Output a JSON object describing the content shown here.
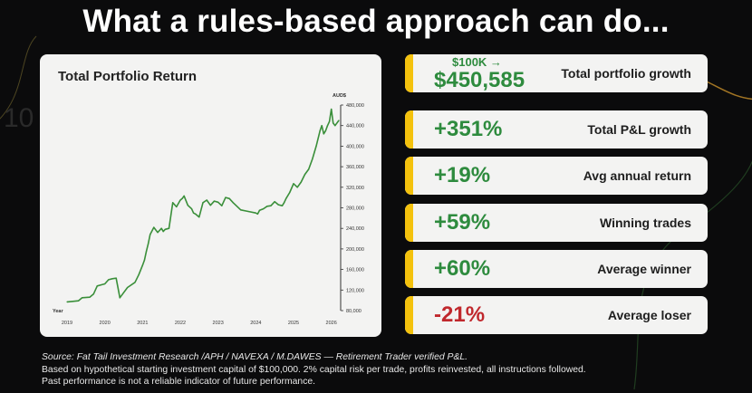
{
  "headline": "What a rules-based approach can do...",
  "colors": {
    "accent_yellow": "#f4c20d",
    "positive_green": "#2e8b3e",
    "negative_red": "#c0282d",
    "line_green": "#3a8f3a"
  },
  "chart_data": {
    "type": "line",
    "title": "Total Portfolio Return",
    "ylabel": "AUD$",
    "xlabel": "Year",
    "ylim": [
      80000,
      480000
    ],
    "yticks": [
      80000,
      120000,
      160000,
      200000,
      240000,
      280000,
      320000,
      360000,
      400000,
      440000,
      480000
    ],
    "ytick_labels": [
      "80,000",
      "120,000",
      "160,000",
      "200,000",
      "240,000",
      "280,000",
      "320,000",
      "360,000",
      "400,000",
      "440,000",
      "480,000"
    ],
    "xlim": [
      2019,
      2026.2
    ],
    "xticks": [
      2019,
      2020,
      2021,
      2022,
      2023,
      2024,
      2025,
      2026
    ],
    "xtick_labels": [
      "2019",
      "2020",
      "2021",
      "2022",
      "2023",
      "2024",
      "2025",
      "2026"
    ],
    "grid": false,
    "series": [
      {
        "x": [
          2019.0,
          2019.3,
          2019.4,
          2019.6,
          2019.7,
          2019.8,
          2019.9,
          2020.0,
          2020.1,
          2020.2,
          2020.3,
          2020.4,
          2020.6,
          2020.8,
          2020.9,
          2021.0,
          2021.05,
          2021.1,
          2021.15,
          2021.2,
          2021.3,
          2021.4,
          2021.5,
          2021.55,
          2021.6,
          2021.7,
          2021.8,
          2021.9,
          2022.0,
          2022.05,
          2022.1,
          2022.2,
          2022.3,
          2022.35,
          2022.4,
          2022.5,
          2022.6,
          2022.7,
          2022.8,
          2022.9,
          2023.0,
          2023.1,
          2023.2,
          2023.3,
          2023.4,
          2023.6,
          2023.8,
          2024.0,
          2024.05,
          2024.1,
          2024.2,
          2024.3,
          2024.4,
          2024.5,
          2024.6,
          2024.7,
          2024.75,
          2024.8,
          2024.9,
          2025.0,
          2025.1,
          2025.2,
          2025.3,
          2025.4,
          2025.5,
          2025.6,
          2025.7,
          2025.75,
          2025.8,
          2025.85,
          2025.9,
          2025.95,
          2026.0,
          2026.05,
          2026.1,
          2026.2
        ],
        "y": [
          97000,
          99000,
          105000,
          106000,
          112000,
          128000,
          130000,
          132000,
          140000,
          142000,
          143000,
          105000,
          125000,
          135000,
          150000,
          168000,
          178000,
          195000,
          210000,
          228000,
          242000,
          232000,
          240000,
          234000,
          238000,
          240000,
          290000,
          282000,
          295000,
          298000,
          303000,
          285000,
          278000,
          270000,
          268000,
          262000,
          290000,
          295000,
          285000,
          293000,
          291000,
          284000,
          300000,
          298000,
          290000,
          276000,
          273000,
          270000,
          268000,
          275000,
          278000,
          283000,
          284000,
          292000,
          286000,
          284000,
          290000,
          298000,
          310000,
          327000,
          320000,
          330000,
          345000,
          355000,
          375000,
          400000,
          430000,
          440000,
          424000,
          430000,
          440000,
          448000,
          472000,
          445000,
          440000,
          450000
        ]
      }
    ]
  },
  "stats": [
    {
      "sub": "$100K →",
      "value": "$450,585",
      "label": "Total portfolio growth",
      "sign": "pos"
    },
    {
      "value": "+351%",
      "label": "Total P&L growth",
      "sign": "pos"
    },
    {
      "value": "+19%",
      "label": "Avg annual return",
      "sign": "pos"
    },
    {
      "value": "+59%",
      "label": "Winning trades",
      "sign": "pos"
    },
    {
      "value": "+60%",
      "label": "Average winner",
      "sign": "pos"
    },
    {
      "value": "-21%",
      "label": "Average loser",
      "sign": "neg"
    }
  ],
  "footnote": {
    "source": "Source: Fat Tail Investment Research /APH / NAVEXA / M.DAWES — Retirement Trader verified P&L.",
    "line2": "Based on hypothetical starting investment capital of $100,000. 2% capital risk per trade, profits reinvested, all instructions followed.",
    "line3": "Past performance is not a reliable indicator of future performance."
  }
}
